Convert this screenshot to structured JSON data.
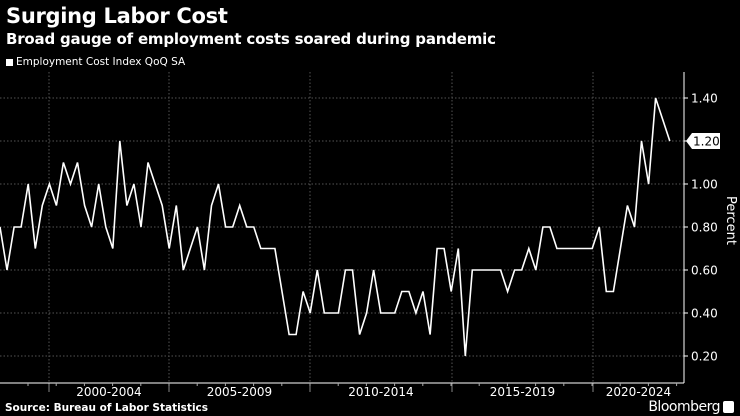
{
  "header": {
    "title": "Surging Labor Cost",
    "subtitle": "Broad gauge of employment costs soared during pandemic"
  },
  "footer": {
    "source": "Source: Bureau of Labor Statistics",
    "brand": "Bloomberg"
  },
  "chart_data": {
    "type": "line",
    "title": "Surging Labor Cost",
    "subtitle": "Broad gauge of employment costs soared during pandemic",
    "ylabel": "Percent",
    "xlabel": "",
    "ylim": [
      0.03,
      1.52
    ],
    "yticks": [
      "0.20",
      "0.40",
      "0.60",
      "0.80",
      "1.00",
      "1.20",
      "1.40"
    ],
    "ytick_values": [
      0.2,
      0.4,
      0.6,
      0.8,
      1.0,
      1.2,
      1.4
    ],
    "x_tick_labels": [
      "2000-2004",
      "2005-2009",
      "2010-2014",
      "2015-2019",
      "2020-2024"
    ],
    "grid": true,
    "legend_position": "top-left",
    "last_value_label": "1.20",
    "line_color": "#ffffff",
    "series": [
      {
        "name": "Employment Cost Index QoQ SA",
        "values": [
          0.8,
          0.6,
          0.8,
          0.8,
          1.0,
          0.7,
          0.9,
          1.0,
          0.9,
          1.1,
          1.0,
          1.1,
          0.9,
          0.8,
          1.0,
          0.8,
          0.7,
          1.2,
          0.9,
          1.0,
          0.8,
          1.1,
          1.0,
          0.9,
          0.7,
          0.9,
          0.6,
          0.7,
          0.8,
          0.6,
          0.9,
          1.0,
          0.8,
          0.8,
          0.9,
          0.8,
          0.8,
          0.7,
          0.7,
          0.7,
          0.5,
          0.3,
          0.3,
          0.5,
          0.4,
          0.6,
          0.4,
          0.4,
          0.4,
          0.6,
          0.6,
          0.3,
          0.4,
          0.6,
          0.4,
          0.4,
          0.4,
          0.5,
          0.5,
          0.4,
          0.5,
          0.3,
          0.7,
          0.7,
          0.5,
          0.7,
          0.2,
          0.6,
          0.6,
          0.6,
          0.6,
          0.6,
          0.5,
          0.6,
          0.6,
          0.7,
          0.6,
          0.8,
          0.8,
          0.7,
          0.7,
          0.7,
          0.7,
          0.7,
          0.7,
          0.8,
          0.5,
          0.5,
          0.7,
          0.9,
          0.8,
          1.2,
          1.0,
          1.4,
          1.3,
          1.2
        ]
      }
    ]
  }
}
